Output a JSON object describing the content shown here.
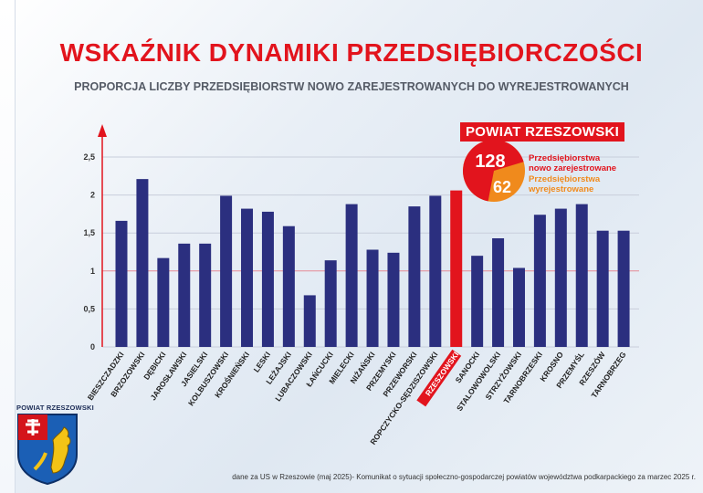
{
  "title": "WSKAŹNIK DYNAMIKI PRZEDSIĘBIORCZOŚCI",
  "subtitle": "PROPORCJA LICZBY PRZEDSIĘBIORSTW NOWO ZAREJESTROWANYCH DO WYREJESTROWANYCH",
  "badge": {
    "label": "POWIAT RZESZOWSKI",
    "new_value": "128",
    "removed_value": "62",
    "new_label_line1": "Przedsiębiorstwa",
    "new_label_line2": "nowo zarejestrowane",
    "removed_label_line1": "Przedsiębiorstwa",
    "removed_label_line2": "wyrejestrowane"
  },
  "crest_label": "POWIAT RZESZOWSKI",
  "footer": "dane za US w Rzeszowie (maj 2025)- Komunikat o sytuacji społeczno-gospodarczej powiatów województwa podkarpackiego za marzec 2025 r.",
  "colors": {
    "bar": "#2b2f7f",
    "highlight": "#e2141d",
    "orange": "#f08a1c",
    "title": "#e2141d"
  },
  "chart_data": {
    "type": "bar",
    "title": "WSKAŹNIK DYNAMIKI PRZEDSIĘBIORCZOŚCI",
    "subtitle": "PROPORCJA LICZBY PRZEDSIĘBIORSTW NOWO ZAREJESTROWANYCH DO WYREJESTROWANYCH",
    "categories": [
      "BIESZCZADZKI",
      "BRZOZOWSKI",
      "DĘBICKI",
      "JAROSŁAWSKI",
      "JASIELSKI",
      "KOLBUSZOWSKI",
      "KROŚNIEŃSKI",
      "LESKI",
      "LEŻAJSKI",
      "LUBACZOWSKI",
      "ŁAŃCUCKI",
      "MIELECKI",
      "NIŻAŃSKI",
      "PRZEMYSKI",
      "PRZEWORSKI",
      "ROPCZYCKO-SĘDZISZOWSKI",
      "RZESZOWSKI",
      "SANOCKI",
      "STALOWOWOLSKI",
      "STRZYŻOWSKI",
      "TARNOBRZESKI",
      "KROSNO",
      "PRZEMYŚL",
      "RZESZÓW",
      "TARNOBRZEG"
    ],
    "values": [
      1.66,
      2.21,
      1.17,
      1.36,
      1.36,
      1.99,
      1.82,
      1.78,
      1.59,
      0.68,
      1.14,
      1.88,
      1.28,
      1.24,
      1.85,
      1.99,
      2.06,
      1.2,
      1.43,
      1.04,
      1.74,
      1.82,
      1.88,
      1.53,
      1.53
    ],
    "highlight": "RZESZOWSKI",
    "ylim": [
      0,
      2.5
    ],
    "yticks": [
      "0",
      "0,5",
      "1",
      "1,5",
      "2",
      "2,5"
    ],
    "reference_line": 1,
    "grid": true,
    "inset": {
      "type": "pie",
      "values": [
        128,
        62
      ],
      "labels": [
        "Przedsiębiorstwa nowo zarejestrowane",
        "Przedsiębiorstwa wyrejestrowane"
      ]
    }
  }
}
